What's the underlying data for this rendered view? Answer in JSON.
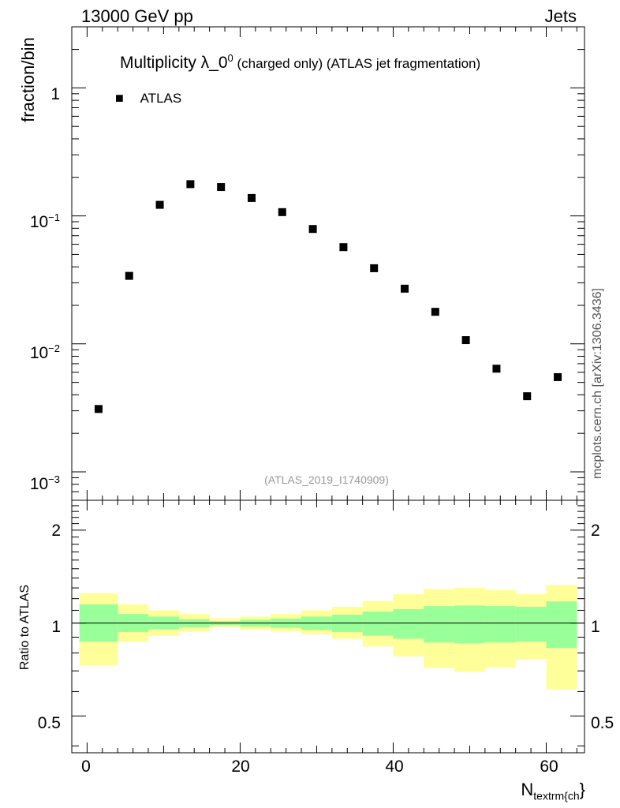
{
  "header": {
    "left_label": "13000 GeV pp",
    "right_label": "Jets"
  },
  "main_plot": {
    "title_prefix": "Multiplicity λ_0",
    "title_superscript": "0",
    "title_suffix": " (charged only) (ATLAS jet fragmentation)",
    "ylabel": "fraction/bin",
    "watermark": "(ATLAS_2019_I1740909)",
    "side_credit": "mcplots.cern.ch [arXiv:1306.3436]",
    "legend": {
      "marker": "■",
      "label": "ATLAS"
    },
    "y_ticks": [
      {
        "base": "1",
        "exp": ""
      },
      {
        "base": "10",
        "exp": "−1"
      },
      {
        "base": "10",
        "exp": "−2"
      },
      {
        "base": "10",
        "exp": "−3"
      }
    ]
  },
  "ratio_plot": {
    "ylabel": "Ratio to ATLAS",
    "left_ticks": [
      "2",
      "1",
      "0.5"
    ],
    "right_ticks": [
      "2",
      "1",
      "0.5"
    ]
  },
  "x_axis": {
    "label_main": "N",
    "label_sub": "textrm{ch",
    "label_close": "}",
    "ticks": [
      "0",
      "20",
      "40",
      "60"
    ]
  },
  "colors": {
    "band_outer": "#ffff99",
    "band_inner": "#99ff99",
    "marker": "#000000",
    "watermark": "#999999"
  },
  "chart_data": {
    "type": "scatter",
    "title": "Multiplicity λ_0^0 (charged only) (ATLAS jet fragmentation)",
    "xlabel": "N_textrm{ch}",
    "ylabel": "fraction/bin",
    "y_scale": "log",
    "xlim": [
      -2,
      65
    ],
    "ylim": [
      0.0006,
      3
    ],
    "bins": [
      [
        -1,
        4
      ],
      [
        4,
        8
      ],
      [
        8,
        12
      ],
      [
        12,
        16
      ],
      [
        16,
        20
      ],
      [
        20,
        24
      ],
      [
        24,
        28
      ],
      [
        28,
        32
      ],
      [
        32,
        36
      ],
      [
        36,
        40
      ],
      [
        40,
        44
      ],
      [
        44,
        48
      ],
      [
        48,
        52
      ],
      [
        52,
        56
      ],
      [
        56,
        60
      ],
      [
        60,
        64
      ]
    ],
    "series": [
      {
        "name": "ATLAS",
        "x": [
          1.5,
          5.5,
          9.5,
          13.5,
          17.5,
          21.5,
          25.5,
          29.5,
          33.5,
          37.5,
          41.5,
          45.5,
          49.5,
          53.5,
          57.5,
          61.5
        ],
        "values": [
          0.0031,
          0.034,
          0.122,
          0.177,
          0.168,
          0.138,
          0.107,
          0.079,
          0.057,
          0.039,
          0.027,
          0.0178,
          0.0107,
          0.0064,
          0.0039,
          0.0055
        ]
      }
    ],
    "ratio": {
      "ylabel": "Ratio to ATLAS",
      "y_scale": "log",
      "ylim": [
        0.38,
        2.5
      ],
      "reference_line": 1.0,
      "stat_band_low": [
        0.87,
        0.935,
        0.955,
        0.97,
        0.985,
        0.975,
        0.965,
        0.95,
        0.935,
        0.91,
        0.89,
        0.865,
        0.86,
        0.865,
        0.87,
        0.83
      ],
      "stat_band_high": [
        1.15,
        1.07,
        1.05,
        1.03,
        1.015,
        1.025,
        1.035,
        1.05,
        1.065,
        1.09,
        1.11,
        1.135,
        1.14,
        1.135,
        1.13,
        1.175
      ],
      "total_band_low": [
        0.73,
        0.87,
        0.91,
        0.94,
        0.97,
        0.955,
        0.94,
        0.92,
        0.89,
        0.84,
        0.78,
        0.715,
        0.695,
        0.72,
        0.765,
        0.61
      ],
      "total_band_high": [
        1.25,
        1.15,
        1.1,
        1.07,
        1.035,
        1.05,
        1.07,
        1.1,
        1.13,
        1.18,
        1.24,
        1.29,
        1.3,
        1.28,
        1.24,
        1.33
      ]
    }
  }
}
